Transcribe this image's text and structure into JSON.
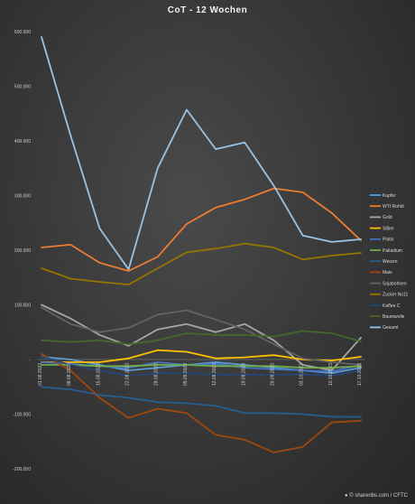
{
  "chart_data": {
    "type": "line",
    "title": "CoT - 12 Wochen",
    "xlabel": "",
    "ylabel": "",
    "ylim": [
      -215000,
      615000
    ],
    "yticks": [
      600000,
      500000,
      400000,
      300000,
      200000,
      100000,
      0,
      -100000,
      -200000
    ],
    "ytick_labels": [
      "600.000",
      "500.000",
      "400.000",
      "300.000",
      "200.000",
      "100.000",
      "-",
      "-100.000",
      "-200.000"
    ],
    "categories": [
      "01.08.2023",
      "08.08.2023",
      "15.08.2023",
      "22.08.2023",
      "29.08.2023",
      "05.09.2023",
      "12.09.2023",
      "19.09.2023",
      "26.09.2023",
      "03.10.2023",
      "10.10.2023",
      "17.10.2023"
    ],
    "grid": false,
    "legend_position": "right",
    "series": [
      {
        "name": "Kupfer",
        "color": "#5b9bd5",
        "values": [
          5000,
          0,
          -10000,
          -20000,
          -15000,
          -10000,
          -5000,
          -10000,
          -15000,
          -20000,
          -25000,
          -15000
        ]
      },
      {
        "name": "WTI Rohöl",
        "color": "#ed7d31",
        "values": [
          205000,
          210000,
          177000,
          162000,
          188000,
          248000,
          278000,
          293000,
          313000,
          306000,
          268000,
          218000
        ]
      },
      {
        "name": "Gold",
        "color": "#a5a5a5",
        "values": [
          100000,
          75000,
          45000,
          25000,
          55000,
          65000,
          50000,
          65000,
          35000,
          -10000,
          -20000,
          40000
        ]
      },
      {
        "name": "Silber",
        "color": "#ffc000",
        "values": [
          -5000,
          -5000,
          -5000,
          2000,
          17000,
          14000,
          2000,
          4000,
          8000,
          0,
          -2000,
          5000
        ]
      },
      {
        "name": "Platin",
        "color": "#4472c4",
        "values": [
          -5000,
          -8000,
          -12000,
          -15000,
          -5000,
          -10000,
          -8000,
          -15000,
          -18000,
          -20000,
          -22000,
          -10000
        ]
      },
      {
        "name": "Palladium",
        "color": "#70ad47",
        "values": [
          -10000,
          -10000,
          -12000,
          -12000,
          -10000,
          -10000,
          -12000,
          -12000,
          -12000,
          -15000,
          -15000,
          -12000
        ]
      },
      {
        "name": "Weizen",
        "color": "#255e91",
        "values": [
          -50000,
          -55000,
          -65000,
          -70000,
          -78000,
          -80000,
          -85000,
          -98000,
          -98000,
          -100000,
          -105000,
          -105000
        ]
      },
      {
        "name": "Mais",
        "color": "#9e480e",
        "values": [
          10000,
          -20000,
          -70000,
          -107000,
          -90000,
          -98000,
          -138000,
          -147000,
          -170000,
          -160000,
          -115000,
          -112000
        ]
      },
      {
        "name": "Sojabohnen",
        "color": "#636363",
        "values": [
          95000,
          65000,
          50000,
          58000,
          82000,
          90000,
          73000,
          55000,
          28000,
          2000,
          -5000,
          -10000
        ]
      },
      {
        "name": "Zucker No11",
        "color": "#997300",
        "values": [
          167000,
          148000,
          142000,
          137000,
          167000,
          196000,
          203000,
          212000,
          205000,
          183000,
          190000,
          195000
        ]
      },
      {
        "name": "Kaffee C",
        "color": "#264478",
        "values": [
          5000,
          -10000,
          -20000,
          -30000,
          -25000,
          -25000,
          -28000,
          -28000,
          -28000,
          -27000,
          -30000,
          -20000
        ]
      },
      {
        "name": "Baumwolle",
        "color": "#43682b",
        "values": [
          35000,
          32000,
          35000,
          28000,
          35000,
          48000,
          45000,
          45000,
          42000,
          52000,
          48000,
          33000
        ]
      },
      {
        "name": "Gesamt",
        "color": "#9ac3e6",
        "values": [
          590000,
          410000,
          240000,
          165000,
          350000,
          457000,
          385000,
          397000,
          318000,
          227000,
          215000,
          220000
        ]
      }
    ]
  },
  "source_label": "© shareribs.com / CFTC"
}
